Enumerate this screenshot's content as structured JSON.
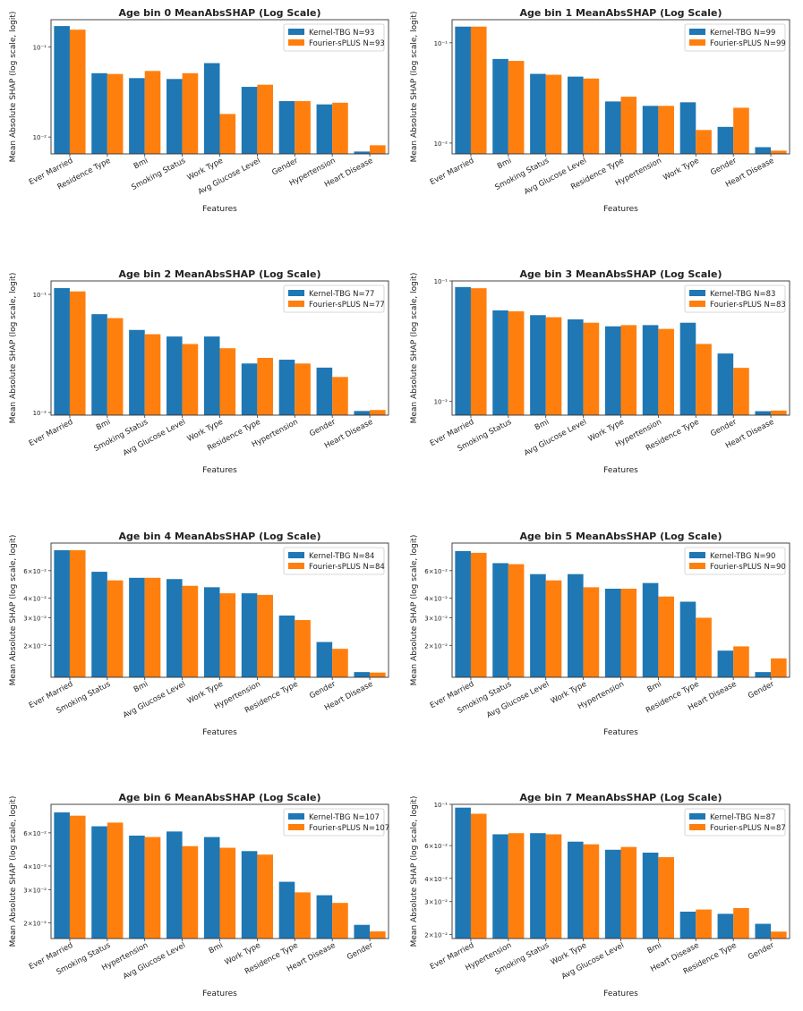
{
  "colors": {
    "kernel": "#1f77b4",
    "fourier": "#ff7f0e"
  },
  "chart_data": [
    {
      "type": "bar",
      "title": "Age bin 0 MeanAbsSHAP (Log Scale)",
      "xlabel": "Features",
      "ylabel": "Mean Absolute SHAP (log scale, logit)",
      "yscale": "log",
      "ylim": [
        0.0065,
        0.2
      ],
      "legend": "top-right",
      "yticks": [
        {
          "value": 0.1,
          "label": "10⁻¹"
        },
        {
          "value": 0.01,
          "label": "10⁻²"
        }
      ],
      "categories": [
        "Ever Married",
        "Residence Type",
        "Bmi",
        "Smoking Status",
        "Work Type",
        "Avg Glucose Level",
        "Gender",
        "Hypertension",
        "Heart Disease"
      ],
      "series": [
        {
          "name": "Kernel-TBG  N=93",
          "values": [
            0.17,
            0.051,
            0.045,
            0.044,
            0.066,
            0.036,
            0.025,
            0.023,
            0.0069
          ]
        },
        {
          "name": "Fourier-sPLUS N=93",
          "values": [
            0.155,
            0.05,
            0.054,
            0.051,
            0.018,
            0.038,
            0.025,
            0.024,
            0.0081
          ]
        }
      ]
    },
    {
      "type": "bar",
      "title": "Age bin 1 MeanAbsSHAP (Log Scale)",
      "xlabel": "Features",
      "ylabel": "Mean Absolute SHAP (log scale, logit)",
      "yscale": "log",
      "ylim": [
        0.0078,
        0.17
      ],
      "legend": "top-right",
      "yticks": [
        {
          "value": 0.1,
          "label": "10⁻¹"
        },
        {
          "value": 0.01,
          "label": "10⁻²"
        }
      ],
      "categories": [
        "Ever Married",
        "Bmi",
        "Smoking Status",
        "Avg Glucose Level",
        "Residence Type",
        "Hypertension",
        "Work Type",
        "Gender",
        "Heart Disease"
      ],
      "series": [
        {
          "name": "Kernel-TBG  N=99",
          "values": [
            0.145,
            0.069,
            0.049,
            0.046,
            0.026,
            0.0235,
            0.0255,
            0.0145,
            0.0091
          ]
        },
        {
          "name": "Fourier-sPLUS N=99",
          "values": [
            0.145,
            0.066,
            0.048,
            0.044,
            0.029,
            0.0235,
            0.0135,
            0.0225,
            0.0084
          ]
        }
      ]
    },
    {
      "type": "bar",
      "title": "Age bin 2 MeanAbsSHAP (Log Scale)",
      "xlabel": "Features",
      "ylabel": "Mean Absolute SHAP (log scale, logit)",
      "yscale": "log",
      "ylim": [
        0.0095,
        0.13
      ],
      "legend": "top-right",
      "yticks": [
        {
          "value": 0.1,
          "label": "10⁻¹"
        },
        {
          "value": 0.01,
          "label": "10⁻²"
        }
      ],
      "categories": [
        "Ever Married",
        "Bmi",
        "Smoking Status",
        "Avg Glucose Level",
        "Work Type",
        "Residence Type",
        "Hypertension",
        "Gender",
        "Heart Disease"
      ],
      "series": [
        {
          "name": "Kernel-TBG  N=77",
          "values": [
            0.113,
            0.068,
            0.05,
            0.044,
            0.044,
            0.026,
            0.028,
            0.024,
            0.0103
          ]
        },
        {
          "name": "Fourier-sPLUS N=77",
          "values": [
            0.106,
            0.063,
            0.046,
            0.038,
            0.035,
            0.029,
            0.026,
            0.02,
            0.0105
          ]
        }
      ]
    },
    {
      "type": "bar",
      "title": "Age bin 3 MeanAbsSHAP (Log Scale)",
      "xlabel": "Features",
      "ylabel": "Mean Absolute SHAP (log scale, logit)",
      "yscale": "log",
      "ylim": [
        0.0077,
        0.1
      ],
      "legend": "top-right",
      "yticks": [
        {
          "value": 0.1,
          "label": "10⁻¹"
        },
        {
          "value": 0.01,
          "label": "10⁻²"
        }
      ],
      "categories": [
        "Ever Married",
        "Smoking Status",
        "Bmi",
        "Avg Glucose Level",
        "Work Type",
        "Hypertension",
        "Residence Type",
        "Gender",
        "Heart Disease"
      ],
      "series": [
        {
          "name": "Kernel-TBG  N=83",
          "values": [
            0.089,
            0.057,
            0.052,
            0.048,
            0.042,
            0.043,
            0.045,
            0.025,
            0.0083
          ]
        },
        {
          "name": "Fourier-sPLUS N=83",
          "values": [
            0.087,
            0.056,
            0.05,
            0.045,
            0.043,
            0.04,
            0.03,
            0.019,
            0.0084
          ]
        }
      ]
    },
    {
      "type": "bar",
      "title": "Age bin 4 MeanAbsSHAP (Log Scale)",
      "xlabel": "Features",
      "ylabel": "Mean Absolute SHAP (log scale, logit)",
      "yscale": "log",
      "ylim": [
        0.0125,
        0.09
      ],
      "legend": "top-right",
      "yticks": [
        {
          "value": 0.06,
          "label": "6×10⁻²"
        },
        {
          "value": 0.04,
          "label": "4×10⁻²"
        },
        {
          "value": 0.03,
          "label": "3×10⁻²"
        },
        {
          "value": 0.02,
          "label": "2×10⁻²"
        }
      ],
      "categories": [
        "Ever Married",
        "Smoking Status",
        "Bmi",
        "Avg Glucose Level",
        "Work Type",
        "Hypertension",
        "Residence Type",
        "Gender",
        "Heart Disease"
      ],
      "series": [
        {
          "name": "Kernel-TBG  N=84",
          "values": [
            0.081,
            0.059,
            0.054,
            0.053,
            0.047,
            0.043,
            0.031,
            0.021,
            0.0135
          ]
        },
        {
          "name": "Fourier-sPLUS N=84",
          "values": [
            0.081,
            0.052,
            0.054,
            0.048,
            0.043,
            0.042,
            0.029,
            0.019,
            0.0134
          ]
        }
      ]
    },
    {
      "type": "bar",
      "title": "Age bin 5 MeanAbsSHAP (Log Scale)",
      "xlabel": "Features",
      "ylabel": "Mean Absolute SHAP (log scale, logit)",
      "yscale": "log",
      "ylim": [
        0.0125,
        0.09
      ],
      "legend": "top-right",
      "yticks": [
        {
          "value": 0.06,
          "label": "6×10⁻²"
        },
        {
          "value": 0.04,
          "label": "4×10⁻²"
        },
        {
          "value": 0.03,
          "label": "3×10⁻²"
        },
        {
          "value": 0.02,
          "label": "2×10⁻²"
        }
      ],
      "categories": [
        "Ever Married",
        "Smoking Status",
        "Avg Glucose Level",
        "Work Type",
        "Hypertension",
        "Bmi",
        "Residence Type",
        "Heart Disease",
        "Gender"
      ],
      "series": [
        {
          "name": "Kernel-TBG  N=90",
          "values": [
            0.08,
            0.067,
            0.057,
            0.057,
            0.046,
            0.05,
            0.038,
            0.0185,
            0.0135
          ]
        },
        {
          "name": "Fourier-sPLUS N=90",
          "values": [
            0.078,
            0.066,
            0.052,
            0.047,
            0.046,
            0.041,
            0.03,
            0.0197,
            0.0165
          ]
        }
      ]
    },
    {
      "type": "bar",
      "title": "Age bin 6 MeanAbsSHAP (Log Scale)",
      "xlabel": "Features",
      "ylabel": "Mean Absolute SHAP (log scale, logit)",
      "yscale": "log",
      "ylim": [
        0.0165,
        0.085
      ],
      "legend": "top-right",
      "yticks": [
        {
          "value": 0.06,
          "label": "6×10⁻²"
        },
        {
          "value": 0.04,
          "label": "4×10⁻²"
        },
        {
          "value": 0.03,
          "label": "3×10⁻²"
        },
        {
          "value": 0.02,
          "label": "2×10⁻²"
        }
      ],
      "categories": [
        "Ever Married",
        "Smoking Status",
        "Hypertension",
        "Avg Glucose Level",
        "Bmi",
        "Work Type",
        "Residence Type",
        "Heart Disease",
        "Gender"
      ],
      "series": [
        {
          "name": "Kernel-TBG  N=107",
          "values": [
            0.077,
            0.065,
            0.058,
            0.061,
            0.057,
            0.048,
            0.033,
            0.028,
            0.0195
          ]
        },
        {
          "name": "Fourier-sPLUS N=107",
          "values": [
            0.074,
            0.068,
            0.057,
            0.051,
            0.05,
            0.046,
            0.029,
            0.0255,
            0.018
          ]
        }
      ]
    },
    {
      "type": "bar",
      "title": "Age bin 7 MeanAbsSHAP (Log Scale)",
      "xlabel": "Features",
      "ylabel": "Mean Absolute SHAP (log scale, logit)",
      "yscale": "log",
      "ylim": [
        0.019,
        0.1
      ],
      "legend": "top-right",
      "yticks": [
        {
          "value": 0.1,
          "label": "10⁻¹"
        },
        {
          "value": 0.06,
          "label": "6×10⁻²"
        },
        {
          "value": 0.04,
          "label": "4×10⁻²"
        },
        {
          "value": 0.03,
          "label": "3×10⁻²"
        },
        {
          "value": 0.02,
          "label": "2×10⁻²"
        }
      ],
      "categories": [
        "Ever Married",
        "Hypertension",
        "Smoking Status",
        "Work Type",
        "Avg Glucose Level",
        "Bmi",
        "Heart Disease",
        "Residence Type",
        "Gender"
      ],
      "series": [
        {
          "name": "Kernel-TBG  N=87",
          "values": [
            0.096,
            0.069,
            0.07,
            0.063,
            0.057,
            0.055,
            0.0265,
            0.0258,
            0.0228
          ]
        },
        {
          "name": "Fourier-sPLUS N=87",
          "values": [
            0.089,
            0.07,
            0.069,
            0.061,
            0.059,
            0.052,
            0.0272,
            0.0277,
            0.0207
          ]
        }
      ]
    }
  ]
}
